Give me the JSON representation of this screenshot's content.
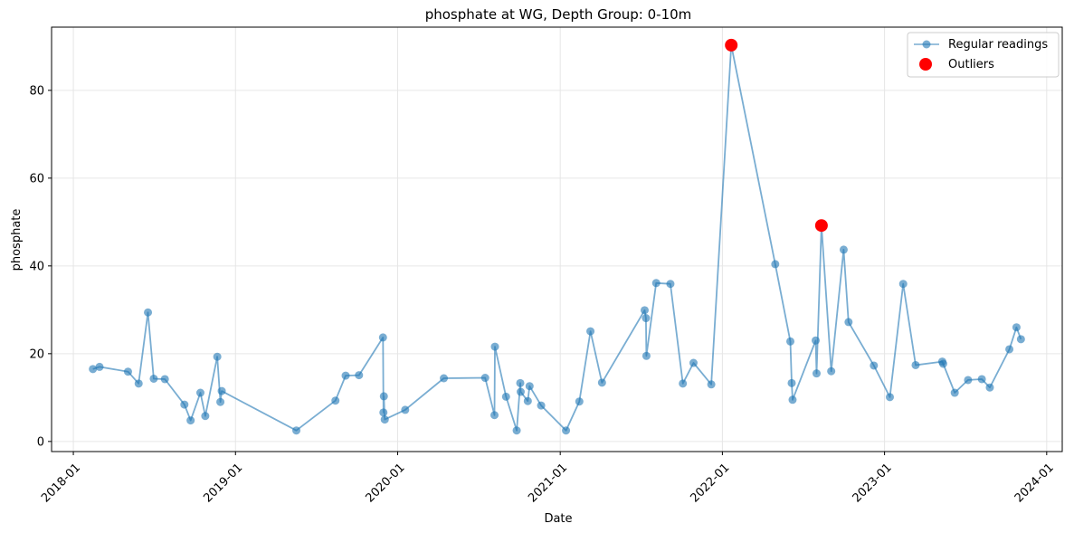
{
  "chart_data": {
    "type": "line",
    "title": "phosphate at WG, Depth Group: 0-10m",
    "xlabel": "Date",
    "ylabel": "phosphate",
    "x_ticks": [
      "2018-01",
      "2019-01",
      "2020-01",
      "2021-01",
      "2022-01",
      "2023-01",
      "2024-01"
    ],
    "y_ticks": [
      0,
      20,
      40,
      60,
      80
    ],
    "xlim": [
      "2017-11-13",
      "2024-02-05"
    ],
    "ylim": [
      -2.3,
      94.4
    ],
    "grid": true,
    "legend_position": "top-right",
    "colors": {
      "regular": "#1f77b4",
      "outlier": "#ff0000"
    },
    "series": [
      {
        "name": "Regular readings",
        "style": "line+marker",
        "x": [
          "2018-02-14",
          "2018-03-01",
          "2018-05-04",
          "2018-05-28",
          "2018-06-18",
          "2018-07-01",
          "2018-07-26",
          "2018-09-08",
          "2018-09-22",
          "2018-10-14",
          "2018-10-25",
          "2018-11-21",
          "2018-11-28",
          "2018-12-01",
          "2019-05-18",
          "2019-08-14",
          "2019-09-06",
          "2019-10-06",
          "2019-11-29",
          "2019-11-30",
          "2019-12-01",
          "2019-12-03",
          "2020-01-18",
          "2020-04-14",
          "2020-07-16",
          "2020-08-06",
          "2020-08-07",
          "2020-09-01",
          "2020-09-25",
          "2020-10-03",
          "2020-10-04",
          "2020-10-20",
          "2020-10-24",
          "2020-11-19",
          "2021-01-14",
          "2021-02-13",
          "2021-03-10",
          "2021-04-05",
          "2021-07-10",
          "2021-07-13",
          "2021-07-14",
          "2021-08-05",
          "2021-09-06",
          "2021-10-04",
          "2021-10-28",
          "2021-12-07",
          "2022-01-21",
          "2022-04-30",
          "2022-06-03",
          "2022-06-06",
          "2022-06-08",
          "2022-07-30",
          "2022-08-01",
          "2022-08-12",
          "2022-09-03",
          "2022-10-01",
          "2022-10-12",
          "2022-12-08",
          "2023-01-13",
          "2023-02-12",
          "2023-03-12",
          "2023-05-11",
          "2023-05-13",
          "2023-06-08",
          "2023-07-08",
          "2023-08-08",
          "2023-08-26",
          "2023-10-09",
          "2023-10-25",
          "2023-11-04"
        ],
        "y": [
          16.5,
          17.0,
          15.9,
          13.2,
          29.4,
          14.3,
          14.2,
          8.4,
          4.8,
          11.1,
          5.8,
          19.3,
          9.0,
          11.5,
          2.5,
          9.3,
          15.0,
          15.1,
          23.7,
          6.6,
          10.3,
          5.0,
          7.2,
          14.4,
          14.5,
          6.0,
          21.6,
          10.2,
          2.5,
          13.3,
          11.3,
          9.2,
          12.6,
          8.2,
          2.5,
          9.1,
          25.1,
          13.4,
          29.9,
          28.1,
          19.5,
          36.1,
          35.9,
          13.2,
          17.9,
          13.0,
          90.3,
          40.4,
          22.8,
          13.3,
          9.5,
          23.0,
          15.5,
          49.2,
          16.0,
          43.7,
          27.2,
          17.3,
          10.1,
          35.9,
          17.4,
          18.2,
          17.7,
          11.1,
          14.0,
          14.2,
          12.3,
          21.0,
          26.0,
          23.3
        ]
      },
      {
        "name": "Outliers",
        "style": "marker",
        "x": [
          "2022-01-21",
          "2022-08-12"
        ],
        "y": [
          90.3,
          49.2
        ]
      }
    ]
  }
}
